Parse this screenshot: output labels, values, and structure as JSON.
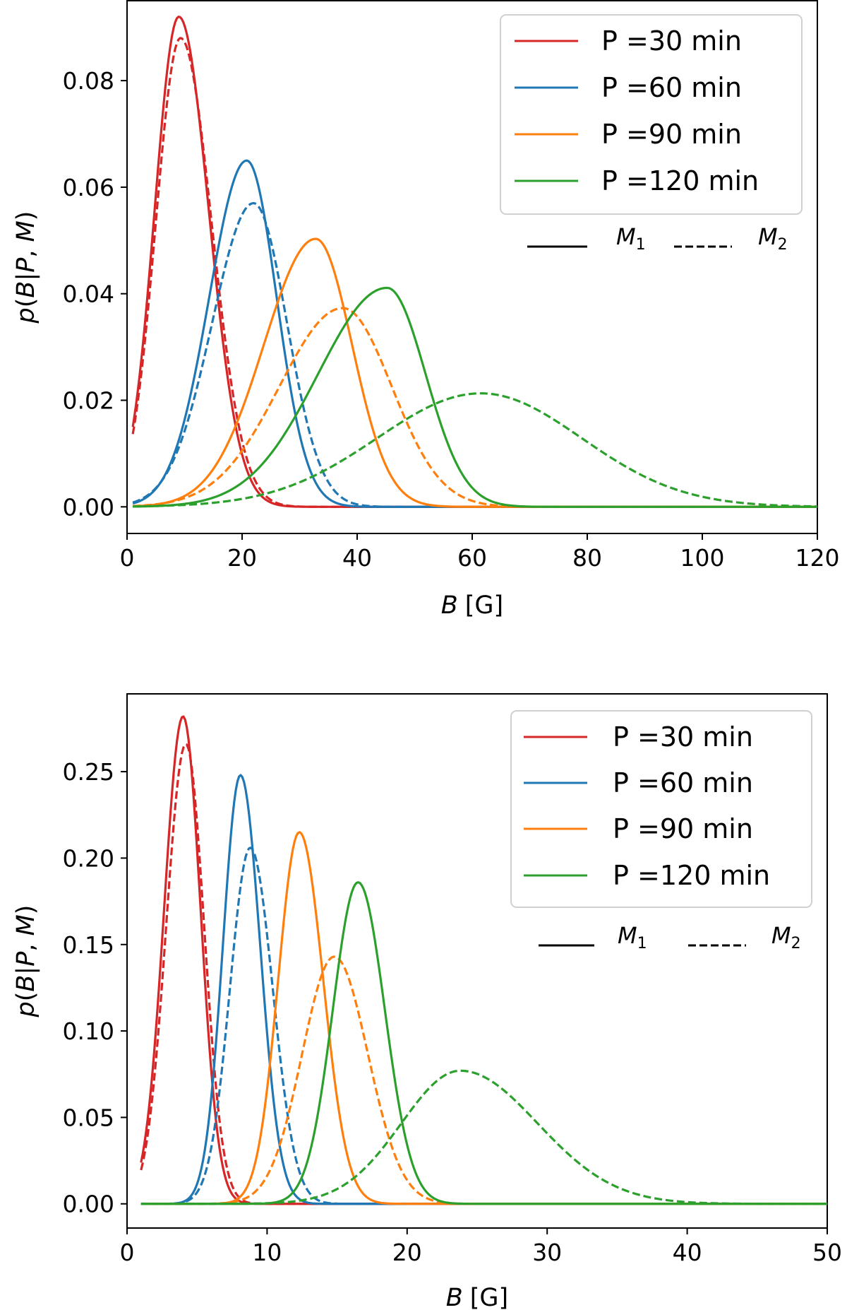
{
  "chart_data": [
    {
      "type": "line",
      "title": "",
      "xlabel": "B [G]",
      "xlabel_var": "B",
      "xlabel_unit": "[G]",
      "ylabel": "p(B|P, M)",
      "xlim": [
        0,
        120
      ],
      "ylim": [
        -0.005,
        0.095
      ],
      "xticks": [
        0,
        20,
        40,
        60,
        80,
        100,
        120
      ],
      "xtick_labels": [
        "0",
        "20",
        "40",
        "60",
        "80",
        "100",
        "120"
      ],
      "yticks": [
        0.0,
        0.02,
        0.04,
        0.06,
        0.08
      ],
      "ytick_labels": [
        "0.00",
        "0.02",
        "0.04",
        "0.06",
        "0.08"
      ],
      "x_start": 1,
      "legend": [
        "P =30 min",
        "P =60 min",
        "P =90 min",
        "P =120 min"
      ],
      "legend_style_labels": [
        "M1",
        "M2"
      ],
      "legend_position": "top-right",
      "series": [
        {
          "name": "P =30 min",
          "model": "M1",
          "style": "solid",
          "color": "#d62728",
          "peak_x": 9.0,
          "peak_y": 0.092,
          "sigma_left": 4.2,
          "sigma_right": 5.2
        },
        {
          "name": "P =30 min",
          "model": "M2",
          "style": "dashed",
          "color": "#d62728",
          "peak_x": 9.3,
          "peak_y": 0.088,
          "sigma_left": 4.3,
          "sigma_right": 5.4
        },
        {
          "name": "P =60 min",
          "model": "M1",
          "style": "solid",
          "color": "#1f77b4",
          "peak_x": 20.8,
          "peak_y": 0.065,
          "sigma_left": 6.5,
          "sigma_right": 5.2
        },
        {
          "name": "P =60 min",
          "model": "M2",
          "style": "dashed",
          "color": "#1f77b4",
          "peak_x": 22.0,
          "peak_y": 0.057,
          "sigma_left": 7.2,
          "sigma_right": 5.8
        },
        {
          "name": "P =90 min",
          "model": "M1",
          "style": "solid",
          "color": "#ff7f0e",
          "peak_x": 32.8,
          "peak_y": 0.0503,
          "sigma_left": 9.0,
          "sigma_right": 6.3
        },
        {
          "name": "P =90 min",
          "model": "M2",
          "style": "dashed",
          "color": "#ff7f0e",
          "peak_x": 37.5,
          "peak_y": 0.0373,
          "sigma_left": 11.0,
          "sigma_right": 8.5
        },
        {
          "name": "P =120 min",
          "model": "M1",
          "style": "solid",
          "color": "#2ca02c",
          "peak_x": 45.2,
          "peak_y": 0.0411,
          "sigma_left": 12.0,
          "sigma_right": 6.7
        },
        {
          "name": "P =120 min",
          "model": "M2",
          "style": "dashed",
          "color": "#2ca02c",
          "peak_x": 61.5,
          "peak_y": 0.0213,
          "sigma_left": 18.0,
          "sigma_right": 17.5
        }
      ]
    },
    {
      "type": "line",
      "title": "",
      "xlabel": "B [G]",
      "xlabel_var": "B",
      "xlabel_unit": "[G]",
      "ylabel": "p(B|P, M)",
      "xlim": [
        0,
        50
      ],
      "ylim": [
        -0.014,
        0.295
      ],
      "xticks": [
        0,
        10,
        20,
        30,
        40,
        50
      ],
      "xtick_labels": [
        "0",
        "10",
        "20",
        "30",
        "40",
        "50"
      ],
      "yticks": [
        0.0,
        0.05,
        0.1,
        0.15,
        0.2,
        0.25
      ],
      "ytick_labels": [
        "0.00",
        "0.05",
        "0.10",
        "0.15",
        "0.20",
        "0.25"
      ],
      "x_start": 1,
      "legend": [
        "P =30 min",
        "P =60 min",
        "P =90 min",
        "P =120 min"
      ],
      "legend_style_labels": [
        "M1",
        "M2"
      ],
      "legend_position": "top-right",
      "series": [
        {
          "name": "P =30 min",
          "model": "M1",
          "style": "solid",
          "color": "#d62728",
          "peak_x": 4.0,
          "peak_y": 0.282,
          "sigma_left": 1.35,
          "sigma_right": 1.25
        },
        {
          "name": "P =30 min",
          "model": "M2",
          "style": "dashed",
          "color": "#d62728",
          "peak_x": 4.2,
          "peak_y": 0.266,
          "sigma_left": 1.4,
          "sigma_right": 1.3
        },
        {
          "name": "P =60 min",
          "model": "M1",
          "style": "solid",
          "color": "#1f77b4",
          "peak_x": 8.1,
          "peak_y": 0.248,
          "sigma_left": 1.25,
          "sigma_right": 1.4
        },
        {
          "name": "P =60 min",
          "model": "M2",
          "style": "dashed",
          "color": "#1f77b4",
          "peak_x": 8.8,
          "peak_y": 0.206,
          "sigma_left": 1.45,
          "sigma_right": 1.6
        },
        {
          "name": "P =90 min",
          "model": "M1",
          "style": "solid",
          "color": "#ff7f0e",
          "peak_x": 12.3,
          "peak_y": 0.215,
          "sigma_left": 1.5,
          "sigma_right": 1.7
        },
        {
          "name": "P =90 min",
          "model": "M2",
          "style": "dashed",
          "color": "#ff7f0e",
          "peak_x": 14.8,
          "peak_y": 0.143,
          "sigma_left": 2.3,
          "sigma_right": 2.4
        },
        {
          "name": "P =120 min",
          "model": "M1",
          "style": "solid",
          "color": "#2ca02c",
          "peak_x": 16.5,
          "peak_y": 0.186,
          "sigma_left": 1.8,
          "sigma_right": 1.9
        },
        {
          "name": "P =120 min",
          "model": "M2",
          "style": "dashed",
          "color": "#2ca02c",
          "peak_x": 23.8,
          "peak_y": 0.077,
          "sigma_left": 4.2,
          "sigma_right": 5.5
        }
      ]
    }
  ]
}
